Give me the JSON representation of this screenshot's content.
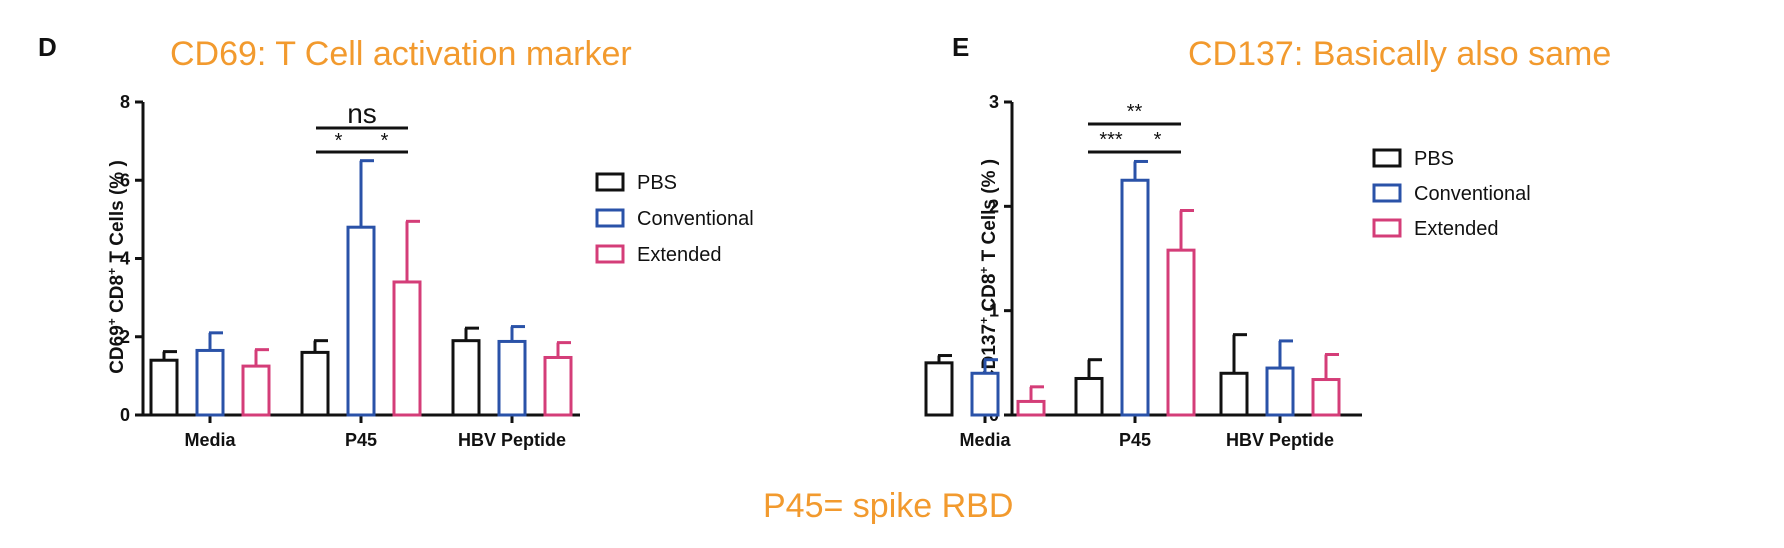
{
  "colors": {
    "annotation": "#f29a2e",
    "axis": "#111111",
    "PBS": "#111111",
    "Conventional": "#2a52a8",
    "Extended": "#d43d78"
  },
  "annotations": {
    "panel_d_letter": "D",
    "panel_e_letter": "E",
    "panel_d_note": "CD69: T Cell activation marker",
    "panel_e_note": "CD137: Basically also same",
    "bottom_note": "P45= spike RBD"
  },
  "chart_data": [
    {
      "type": "bar",
      "panel": "D",
      "ylabel_main": "CD69",
      "ylabel_sup1": "+",
      "ylabel_mid": " CD8",
      "ylabel_sup2": "+",
      "ylabel_tail": " T Cells (% )",
      "categories": [
        "Media",
        "P45",
        "HBV Peptide"
      ],
      "ylim": [
        0,
        8
      ],
      "yticks": [
        "0",
        "2",
        "4",
        "6",
        "8"
      ],
      "series": [
        {
          "name": "PBS",
          "values": [
            1.4,
            1.6,
            1.9
          ],
          "errors": [
            0.22,
            0.3,
            0.32
          ]
        },
        {
          "name": "Conventional",
          "values": [
            1.65,
            4.8,
            1.88
          ],
          "errors": [
            0.45,
            1.7,
            0.38
          ]
        },
        {
          "name": "Extended",
          "values": [
            1.25,
            3.4,
            1.47
          ],
          "errors": [
            0.42,
            1.55,
            0.38
          ]
        }
      ],
      "significance": [
        {
          "label": "ns",
          "from": "PBS",
          "to": "Extended",
          "category": "P45"
        },
        {
          "label": "*",
          "from": "PBS",
          "to": "Conventional",
          "category": "P45"
        },
        {
          "label": "*",
          "from": "Conventional",
          "to": "Extended",
          "category": "P45"
        }
      ],
      "legend": [
        "PBS",
        "Conventional",
        "Extended"
      ],
      "legend_position": "right"
    },
    {
      "type": "bar",
      "panel": "E",
      "ylabel_main": "CD137",
      "ylabel_sup1": "+",
      "ylabel_mid": " CD8",
      "ylabel_sup2": "+",
      "ylabel_tail": " T Cells (% )",
      "categories": [
        "Media",
        "P45",
        "HBV Peptide"
      ],
      "ylim": [
        0,
        3
      ],
      "yticks": [
        "0",
        "1",
        "2",
        "3"
      ],
      "series": [
        {
          "name": "PBS",
          "values": [
            0.5,
            0.35,
            0.4
          ],
          "errors": [
            0.07,
            0.18,
            0.37
          ]
        },
        {
          "name": "Conventional",
          "values": [
            0.4,
            2.25,
            0.45
          ],
          "errors": [
            0.13,
            0.18,
            0.26
          ]
        },
        {
          "name": "Extended",
          "values": [
            0.13,
            1.58,
            0.34
          ],
          "errors": [
            0.14,
            0.38,
            0.24
          ]
        }
      ],
      "significance": [
        {
          "label": "**",
          "from": "PBS",
          "to": "Extended",
          "category": "P45"
        },
        {
          "label": "***",
          "from": "PBS",
          "to": "Conventional",
          "category": "P45"
        },
        {
          "label": "*",
          "from": "Conventional",
          "to": "Extended",
          "category": "P45"
        }
      ],
      "legend": [
        "PBS",
        "Conventional",
        "Extended"
      ],
      "legend_position": "right"
    }
  ]
}
